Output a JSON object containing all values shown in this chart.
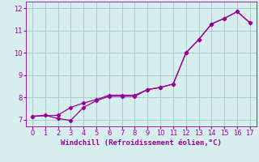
{
  "line1_x": [
    0,
    1,
    2,
    3,
    4,
    5,
    6,
    7,
    8,
    9,
    10,
    11,
    12,
    13,
    14,
    15,
    16,
    17
  ],
  "line1_y": [
    7.15,
    7.2,
    7.05,
    6.97,
    7.55,
    7.85,
    8.05,
    8.05,
    8.05,
    8.35,
    8.45,
    8.6,
    10.0,
    10.6,
    11.3,
    11.55,
    11.85,
    11.35
  ],
  "line2_x": [
    0,
    2,
    3,
    4,
    5,
    6,
    7,
    8,
    9,
    10,
    11,
    12,
    13,
    14,
    15,
    16,
    17
  ],
  "line2_y": [
    7.15,
    7.2,
    7.55,
    7.75,
    7.9,
    8.1,
    8.1,
    8.1,
    8.35,
    8.45,
    8.6,
    10.0,
    10.6,
    11.3,
    11.55,
    11.85,
    11.35
  ],
  "color": "#990099",
  "bg_color": "#d6eeee",
  "grid_color": "#aacccc",
  "xlabel": "Windchill (Refroidissement éolien,°C)",
  "xlim": [
    -0.5,
    17.5
  ],
  "ylim": [
    6.7,
    12.3
  ],
  "yticks": [
    7,
    8,
    9,
    10,
    11,
    12
  ],
  "xticks": [
    0,
    1,
    2,
    3,
    4,
    5,
    6,
    7,
    8,
    9,
    10,
    11,
    12,
    13,
    14,
    15,
    16,
    17
  ],
  "xlabel_fontsize": 6.5,
  "tick_fontsize": 6.0,
  "marker": "D",
  "markersize": 2.2,
  "linewidth": 0.9
}
